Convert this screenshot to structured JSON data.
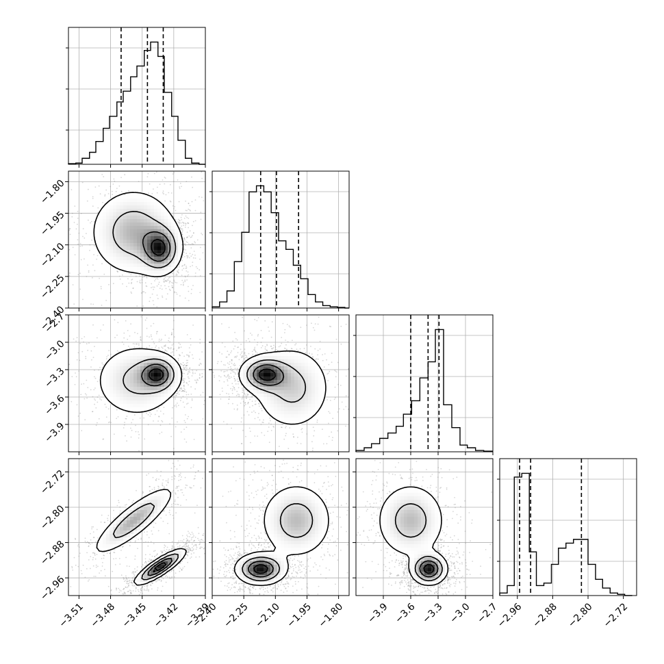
{
  "chart_data": {
    "type": "corner",
    "parameters": [
      {
        "range": [
          -3.52,
          -3.39
        ],
        "ticks": [
          -3.51,
          -3.48,
          -3.45,
          -3.42,
          -3.39
        ],
        "tick_labels": [
          "−3.51",
          "−3.48",
          "−3.45",
          "−3.42",
          "−3.39"
        ],
        "quantiles": [
          -3.47,
          -3.445,
          -3.43
        ]
      },
      {
        "range": [
          -2.4,
          -1.75
        ],
        "ticks": [
          -2.4,
          -2.25,
          -2.1,
          -1.95,
          -1.8
        ],
        "tick_labels": [
          "−2.40",
          "−2.25",
          "−2.10",
          "−1.95",
          "−1.80"
        ],
        "quantiles": [
          -2.17,
          -2.095,
          -1.99
        ]
      },
      {
        "range": [
          -4.2,
          -2.7
        ],
        "ticks": [
          -3.9,
          -3.6,
          -3.3,
          -3.0,
          -2.7
        ],
        "tick_labels": [
          "−3.9",
          "−3.6",
          "−3.3",
          "−3.0",
          "−2.7"
        ],
        "quantiles": [
          -3.6,
          -3.41,
          -3.29
        ]
      },
      {
        "range": [
          -3.0,
          -2.69
        ],
        "ticks": [
          -2.96,
          -2.88,
          -2.8,
          -2.72
        ],
        "tick_labels": [
          "−2.96",
          "−2.88",
          "−2.80",
          "−2.72"
        ],
        "quantiles": [
          -2.955,
          -2.93,
          -2.815
        ]
      }
    ],
    "histograms": [
      {
        "bins": [
          -3.52,
          -3.513,
          -3.507,
          -3.5,
          -3.494,
          -3.487,
          -3.481,
          -3.474,
          -3.468,
          -3.461,
          -3.455,
          -3.448,
          -3.442,
          -3.435,
          -3.429,
          -3.422,
          -3.416,
          -3.409,
          -3.403,
          -3.396,
          -3.39
        ],
        "counts": [
          0.5,
          1,
          5,
          10,
          19,
          30,
          40,
          52,
          61,
          73,
          82,
          95,
          102,
          90,
          60,
          40,
          20,
          5,
          1,
          0
        ]
      },
      {
        "bins": [
          -2.4,
          -2.365,
          -2.33,
          -2.295,
          -2.26,
          -2.225,
          -2.19,
          -2.155,
          -2.12,
          -2.085,
          -2.05,
          -2.015,
          -1.98,
          -1.945,
          -1.91,
          -1.875,
          -1.84,
          -1.805,
          -1.77,
          -1.75
        ],
        "counts": [
          1,
          5,
          14,
          38,
          62,
          95,
          100,
          95,
          78,
          55,
          48,
          35,
          24,
          11,
          5,
          2,
          1,
          0.5,
          0
        ]
      },
      {
        "bins": [
          -4.2,
          -4.11,
          -4.03,
          -3.94,
          -3.85,
          -3.76,
          -3.68,
          -3.59,
          -3.5,
          -3.41,
          -3.33,
          -3.24,
          -3.15,
          -3.06,
          -2.98,
          -2.89,
          -2.8,
          -2.7
        ],
        "counts": [
          1,
          3,
          6,
          10,
          14,
          19,
          28,
          38,
          55,
          67,
          91,
          35,
          18,
          5,
          3,
          1,
          0.5
        ]
      },
      {
        "bins": [
          -3.0,
          -2.983,
          -2.967,
          -2.95,
          -2.933,
          -2.917,
          -2.9,
          -2.883,
          -2.867,
          -2.85,
          -2.833,
          -2.817,
          -2.8,
          -2.783,
          -2.767,
          -2.75,
          -2.733,
          -2.717,
          -2.7
        ],
        "counts": [
          2,
          8,
          95,
          98,
          35,
          8,
          10,
          25,
          38,
          42,
          45,
          45,
          25,
          13,
          6,
          2,
          1,
          0
        ]
      }
    ],
    "contours_2d": [
      {
        "pair": [
          1,
          0
        ],
        "blobs": [
          {
            "cx": -3.458,
            "cy": -2.04,
            "sx": 0.022,
            "sy": 0.11,
            "w": 0.6
          },
          {
            "cx": -3.433,
            "cy": -2.12,
            "sx": 0.01,
            "sy": 0.06,
            "w": 0.9
          }
        ]
      },
      {
        "pair": [
          2,
          0
        ],
        "blobs": [
          {
            "cx": -3.455,
            "cy": -3.42,
            "sx": 0.022,
            "sy": 0.22,
            "w": 0.5
          },
          {
            "cx": -3.435,
            "cy": -3.35,
            "sx": 0.01,
            "sy": 0.1,
            "w": 0.9
          }
        ]
      },
      {
        "pair": [
          2,
          1
        ],
        "blobs": [
          {
            "cx": -2.15,
            "cy": -3.35,
            "sx": 0.06,
            "sy": 0.1,
            "w": 0.9
          },
          {
            "cx": -2.02,
            "cy": -3.5,
            "sx": 0.1,
            "sy": 0.25,
            "w": 0.45
          }
        ]
      },
      {
        "pair": [
          3,
          0
        ],
        "blobs": [
          {
            "cx": -3.458,
            "cy": -2.83,
            "sx": 0.02,
            "sy": 0.04,
            "rho": 0.85,
            "w": 0.55
          },
          {
            "cx": -3.433,
            "cy": -2.935,
            "sx": 0.012,
            "sy": 0.02,
            "rho": 0.85,
            "w": 1.0
          }
        ]
      },
      {
        "pair": [
          3,
          1
        ],
        "blobs": [
          {
            "cx": -2.0,
            "cy": -2.83,
            "sx": 0.09,
            "sy": 0.045,
            "w": 0.5
          },
          {
            "cx": -2.17,
            "cy": -2.94,
            "sx": 0.06,
            "sy": 0.018,
            "w": 1.0
          }
        ]
      },
      {
        "pair": [
          3,
          2
        ],
        "blobs": [
          {
            "cx": -3.6,
            "cy": -2.83,
            "sx": 0.2,
            "sy": 0.045,
            "w": 0.5
          },
          {
            "cx": -3.4,
            "cy": -2.94,
            "sx": 0.1,
            "sy": 0.018,
            "w": 1.0
          }
        ]
      }
    ],
    "grid": true,
    "colors": {
      "line": "#000000",
      "grid": "#b0b0b0",
      "points": "#8a8a8a"
    }
  }
}
